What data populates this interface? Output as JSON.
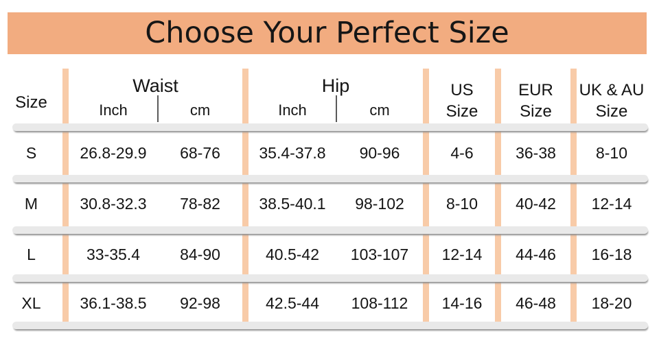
{
  "title": "Choose Your Perfect Size",
  "colors": {
    "banner_bg": "#F2AC80",
    "divider_bar": "#F8CBA8",
    "separator": "#E9E9E9",
    "separator_shadow": "#8F8F8F",
    "text": "#141414"
  },
  "header": {
    "size": "Size",
    "waist": "Waist",
    "hip": "Hip",
    "inch": "Inch",
    "cm": "cm",
    "us_line1": "US",
    "us_line2": "Size",
    "eur_line1": "EUR",
    "eur_line2": "Size",
    "uk_line1": "UK & AU",
    "uk_line2": "Size"
  },
  "chart_data": {
    "type": "table",
    "title": "Choose Your Perfect Size",
    "columns": [
      "Size",
      "Waist Inch",
      "Waist cm",
      "Hip Inch",
      "Hip cm",
      "US Size",
      "EUR Size",
      "UK & AU Size"
    ],
    "rows": [
      [
        "S",
        "26.8-29.9",
        "68-76",
        "35.4-37.8",
        "90-96",
        "4-6",
        "36-38",
        "8-10"
      ],
      [
        "M",
        "30.8-32.3",
        "78-82",
        "38.5-40.1",
        "98-102",
        "8-10",
        "40-42",
        "12-14"
      ],
      [
        "L",
        "33-35.4",
        "84-90",
        "40.5-42",
        "103-107",
        "12-14",
        "44-46",
        "16-18"
      ],
      [
        "XL",
        "36.1-38.5",
        "92-98",
        "42.5-44",
        "108-112",
        "14-16",
        "46-48",
        "18-20"
      ]
    ]
  }
}
